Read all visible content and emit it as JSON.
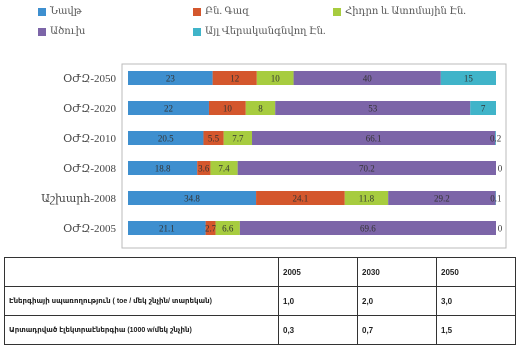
{
  "chart_data": {
    "type": "bar",
    "orientation": "horizontal",
    "stacked": true,
    "title": "",
    "legend_position": "top",
    "categories": [
      "ՕԺԶ-2050",
      "ՕԺԶ-2020",
      "ՕԺԶ-2010",
      "ՕԺԶ-2008",
      "Աշխարհ-2008",
      "ՕԺԶ-2005"
    ],
    "series": [
      {
        "name": "Նավթ",
        "color": "#3e8fcf",
        "values": [
          23,
          22,
          20.5,
          18.8,
          34.8,
          21.1
        ]
      },
      {
        "name": "Բն. Գազ",
        "color": "#d4572d",
        "values": [
          12,
          10,
          5.5,
          3.6,
          24.1,
          2.7
        ]
      },
      {
        "name": "Հիդրո և Ատոմային Էն.",
        "color": "#a7cc3f",
        "values": [
          10,
          8,
          7.7,
          7.4,
          11.8,
          6.6
        ]
      },
      {
        "name": "Ածուխ",
        "color": "#7c65a8",
        "values": [
          40,
          53,
          66.1,
          70.2,
          29.2,
          69.6
        ]
      },
      {
        "name": "Այլ Վերականգնվող Էն.",
        "color": "#40b4c9",
        "values": [
          15,
          7,
          0.2,
          0,
          0.1,
          0
        ]
      }
    ],
    "labels": [
      [
        "23",
        "12",
        "10",
        "40",
        "15"
      ],
      [
        "22",
        "10",
        "8",
        "53",
        "7"
      ],
      [
        "20.5",
        "5.5",
        "7.7",
        "66.1",
        "0.2"
      ],
      [
        "18.8",
        "3.6",
        "7.4",
        "70.2",
        "0"
      ],
      [
        "34.8",
        "24.1",
        "11.8",
        "29.2",
        "0.1"
      ],
      [
        "21.1",
        "2.7",
        "6.6",
        "69.6",
        "0"
      ]
    ],
    "xlim": [
      0,
      100
    ]
  },
  "table": {
    "headers": [
      "",
      "2005",
      "2030",
      "2050"
    ],
    "rows": [
      {
        "label": "Էներգիայի սպառողություն ( toe / մեկ շնչին/ տարեկան)",
        "values": [
          "1,0",
          "2,0",
          "3,0"
        ]
      },
      {
        "label": "Արտադրված էլեկտրաէներգիա (1000 w/մեկ շնչին)",
        "values": [
          "0,3",
          "0,7",
          "1,5"
        ]
      }
    ]
  }
}
